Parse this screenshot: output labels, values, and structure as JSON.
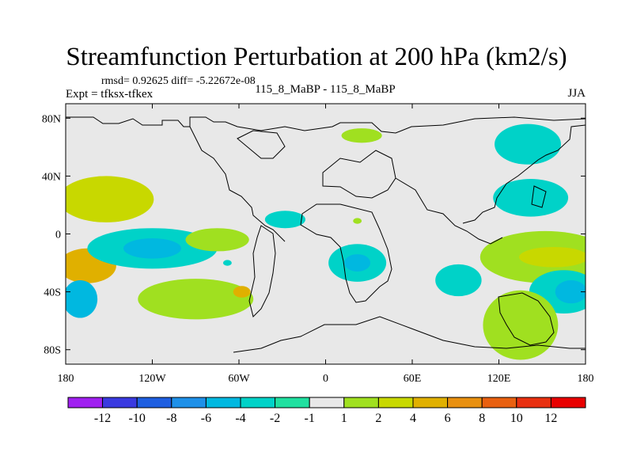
{
  "chart_data": {
    "type": "contour-map",
    "title": "Streamfunction Perturbation at 200 hPa (km2/s)",
    "stats": "rmsd= 0.92625 diff= -5.22672e-08",
    "experiment": "Expt = tfksx-tfkex",
    "comparison": "115_8_MaBP - 115_8_MaBP",
    "season": "JJA",
    "xlim": [
      -180,
      180
    ],
    "ylim": [
      -90,
      90
    ],
    "x_ticks": [
      {
        "value": -180,
        "label": "180"
      },
      {
        "value": -120,
        "label": "120W"
      },
      {
        "value": -60,
        "label": "60W"
      },
      {
        "value": 0,
        "label": "0"
      },
      {
        "value": 60,
        "label": "60E"
      },
      {
        "value": 120,
        "label": "120E"
      },
      {
        "value": 180,
        "label": "180"
      }
    ],
    "y_ticks": [
      {
        "value": 80,
        "label": "80N"
      },
      {
        "value": 40,
        "label": "40N"
      },
      {
        "value": 0,
        "label": "0"
      },
      {
        "value": -40,
        "label": "40S"
      },
      {
        "value": -80,
        "label": "80S"
      }
    ],
    "colorbar": {
      "labels": [
        "-12",
        "-10",
        "-8",
        "-6",
        "-4",
        "-2",
        "-1",
        "1",
        "2",
        "4",
        "6",
        "8",
        "10",
        "12"
      ],
      "colors": [
        "#a020f0",
        "#3a3ae0",
        "#1e5ee0",
        "#1e90e8",
        "#00b8e0",
        "#00d2c8",
        "#20e0a0",
        "#e8e8e8",
        "#a0e020",
        "#c8d800",
        "#e0b000",
        "#e89010",
        "#e86010",
        "#e83010",
        "#e80000"
      ]
    },
    "anomalies": [
      {
        "lon": -152,
        "lat": 24,
        "rx": 33,
        "ry": 16,
        "value": 3,
        "color": "#c8d800"
      },
      {
        "lon": -165,
        "lat": -22,
        "rx": 20,
        "ry": 12,
        "value": 4,
        "color": "#e0b000"
      },
      {
        "lon": -120,
        "lat": -10,
        "rx": 45,
        "ry": 14,
        "value": -2,
        "color": "#00d2c8"
      },
      {
        "lon": -120,
        "lat": -10,
        "rx": 20,
        "ry": 7,
        "value": -3,
        "color": "#00b8e0"
      },
      {
        "lon": -170,
        "lat": -45,
        "rx": 12,
        "ry": 13,
        "value": -3,
        "color": "#00b8e0"
      },
      {
        "lon": -90,
        "lat": -45,
        "rx": 40,
        "ry": 14,
        "value": 2,
        "color": "#a0e020"
      },
      {
        "lon": -58,
        "lat": -40,
        "rx": 6,
        "ry": 4,
        "value": 4,
        "color": "#e0b000"
      },
      {
        "lon": -75,
        "lat": -4,
        "rx": 22,
        "ry": 8,
        "value": 2,
        "color": "#a0e020"
      },
      {
        "lon": -28,
        "lat": 10,
        "rx": 14,
        "ry": 6,
        "value": -2,
        "color": "#00d2c8"
      },
      {
        "lon": -68,
        "lat": -20,
        "rx": 3,
        "ry": 2,
        "value": -2,
        "color": "#00d2c8"
      },
      {
        "lon": 22,
        "lat": -20,
        "rx": 20,
        "ry": 13,
        "value": -2,
        "color": "#00d2c8"
      },
      {
        "lon": 22,
        "lat": -20,
        "rx": 9,
        "ry": 6,
        "value": -3,
        "color": "#00b8e0"
      },
      {
        "lon": 25,
        "lat": 68,
        "rx": 14,
        "ry": 5,
        "value": 2,
        "color": "#a0e020"
      },
      {
        "lon": 22,
        "lat": 9,
        "rx": 3,
        "ry": 2,
        "value": 2,
        "color": "#a0e020"
      },
      {
        "lon": 92,
        "lat": -32,
        "rx": 16,
        "ry": 11,
        "value": -2,
        "color": "#00d2c8"
      },
      {
        "lon": 140,
        "lat": 62,
        "rx": 23,
        "ry": 14,
        "value": -2,
        "color": "#00d2c8"
      },
      {
        "lon": 142,
        "lat": 25,
        "rx": 26,
        "ry": 13,
        "value": -2,
        "color": "#00d2c8"
      },
      {
        "lon": 152,
        "lat": -16,
        "rx": 45,
        "ry": 18,
        "value": 2,
        "color": "#a0e020"
      },
      {
        "lon": 158,
        "lat": -16,
        "rx": 24,
        "ry": 7,
        "value": 3,
        "color": "#c8d800"
      },
      {
        "lon": 165,
        "lat": -40,
        "rx": 24,
        "ry": 15,
        "value": -2,
        "color": "#00d2c8"
      },
      {
        "lon": 170,
        "lat": -40,
        "rx": 11,
        "ry": 8,
        "value": -3,
        "color": "#00b8e0"
      },
      {
        "lon": 135,
        "lat": -63,
        "rx": 26,
        "ry": 24,
        "value": 2,
        "color": "#a0e020"
      }
    ]
  }
}
